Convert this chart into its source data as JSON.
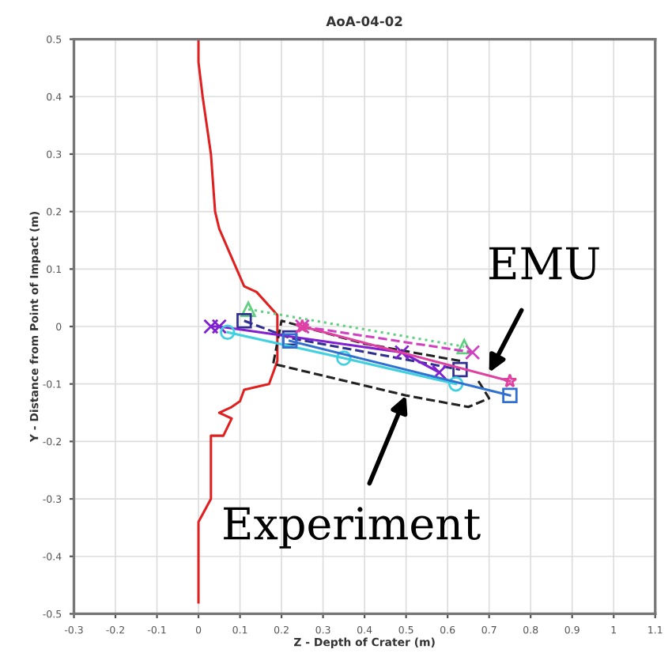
{
  "chart_data": {
    "type": "line",
    "title": "AoA-04-02",
    "xlabel": "Z - Depth of Crater (m)",
    "ylabel": "Y - Distance from Point of Impact (m)",
    "xlim": [
      -0.3,
      1.1
    ],
    "ylim": [
      -0.5,
      0.5
    ],
    "xticks": [
      -0.3,
      -0.2,
      -0.1,
      0,
      0.1,
      0.2,
      0.3,
      0.4,
      0.5,
      0.6,
      0.7,
      0.8,
      0.9,
      1,
      1.1
    ],
    "yticks": [
      -0.5,
      -0.4,
      -0.3,
      -0.2,
      -0.1,
      0,
      0.1,
      0.2,
      0.3,
      0.4,
      0.5
    ],
    "grid": true,
    "series": [
      {
        "color": "#e02020",
        "marker": "none",
        "line_style": "solid",
        "x": [
          0.0,
          0.0,
          0.01,
          0.03,
          0.04,
          0.05,
          0.08,
          0.11,
          0.14,
          0.19,
          0.19,
          0.17,
          0.11,
          0.1,
          0.08,
          0.05,
          0.08,
          0.06,
          0.03,
          0.03,
          0.0,
          0.0
        ],
        "values": [
          0.5,
          0.46,
          0.4,
          0.3,
          0.2,
          0.17,
          0.12,
          0.07,
          0.06,
          0.02,
          -0.06,
          -0.1,
          -0.11,
          -0.13,
          -0.14,
          -0.15,
          -0.16,
          -0.19,
          -0.19,
          -0.3,
          -0.34,
          -0.48
        ]
      },
      {
        "color": "#222222",
        "marker": "none",
        "line_style": "dashed",
        "x": [
          0.63,
          0.4,
          0.2,
          0.18,
          0.5,
          0.65,
          0.7,
          0.67
        ],
        "values": [
          -0.06,
          -0.03,
          0.01,
          -0.065,
          -0.12,
          -0.14,
          -0.125,
          -0.09
        ]
      },
      {
        "color": "#60d080",
        "marker": "triangle",
        "line_style": "dotted",
        "x": [
          0.12,
          0.64
        ],
        "values": [
          0.03,
          -0.035
        ]
      },
      {
        "color": "#303090",
        "marker": "square",
        "line_style": "dashed",
        "x": [
          0.11,
          0.22,
          0.63
        ],
        "values": [
          0.01,
          -0.02,
          -0.075
        ]
      },
      {
        "color": "#d040c0",
        "marker": "cross",
        "line_style": "dashed",
        "x": [
          0.25,
          0.66
        ],
        "values": [
          0.0,
          -0.045
        ]
      },
      {
        "color": "#8020d0",
        "marker": "cross",
        "line_style": "solid",
        "x": [
          0.03,
          0.05,
          0.49,
          0.58
        ],
        "values": [
          0.0,
          0.0,
          -0.045,
          -0.08
        ]
      },
      {
        "color": "#e040a0",
        "marker": "star",
        "line_style": "solid",
        "x": [
          0.25,
          0.75
        ],
        "values": [
          0.0,
          -0.095
        ]
      },
      {
        "color": "#40d0e0",
        "marker": "circle",
        "line_style": "solid",
        "x": [
          0.07,
          0.35,
          0.62
        ],
        "values": [
          -0.01,
          -0.055,
          -0.1
        ]
      },
      {
        "color": "#3070d0",
        "marker": "square",
        "line_style": "solid",
        "x": [
          0.22,
          0.75
        ],
        "values": [
          -0.025,
          -0.12
        ]
      }
    ],
    "annotations": [
      {
        "text": "EMU",
        "x": 0.7,
        "y": -0.08
      },
      {
        "text": "Experiment",
        "x": 0.5,
        "y": -0.12
      }
    ]
  }
}
